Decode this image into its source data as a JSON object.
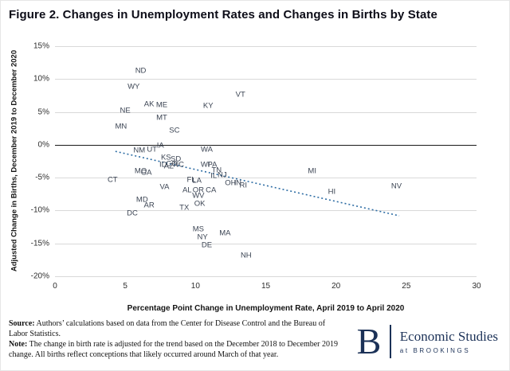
{
  "title": "Figure 2. Changes in Unemployment Rates and Changes in Births by State",
  "chart_data": {
    "type": "scatter",
    "marker": "state-abbreviation-text",
    "title": "Figure 2. Changes in Unemployment Rates and Changes in Births by State",
    "xlabel": "Percentage Point Change in Unemployment Rate, April 2019 to April 2020",
    "ylabel": "Adjusted Change in Births, December 2019 to December 2020",
    "xlim": [
      0,
      30
    ],
    "ylim": [
      -20,
      15
    ],
    "xticks": [
      0,
      5,
      10,
      15,
      20,
      25,
      30
    ],
    "yticks": [
      15,
      10,
      5,
      0,
      -5,
      -10,
      -15,
      -20
    ],
    "grid": "horizontal",
    "zero_line": true,
    "legend": "none",
    "trendline": {
      "style": "dotted",
      "x1": 4.3,
      "y1": -1.0,
      "x2": 24.5,
      "y2": -10.8
    },
    "colors": {
      "trend": "#2e6da4",
      "state_label": "#3c4554",
      "gridline": "#d9d9d9",
      "zero_line": "#1a1a1a"
    },
    "points": [
      {
        "state": "ND",
        "x": 6.1,
        "y": 11.2
      },
      {
        "state": "WY",
        "x": 5.6,
        "y": 8.8
      },
      {
        "state": "VT",
        "x": 13.2,
        "y": 7.6
      },
      {
        "state": "AK",
        "x": 6.7,
        "y": 6.2
      },
      {
        "state": "ME",
        "x": 7.6,
        "y": 6.0
      },
      {
        "state": "KY",
        "x": 10.9,
        "y": 5.9
      },
      {
        "state": "NE",
        "x": 5.0,
        "y": 5.2
      },
      {
        "state": "MT",
        "x": 7.6,
        "y": 4.1
      },
      {
        "state": "MN",
        "x": 4.7,
        "y": 2.8
      },
      {
        "state": "SC",
        "x": 8.5,
        "y": 2.2
      },
      {
        "state": "IA",
        "x": 7.5,
        "y": -0.1
      },
      {
        "state": "NM",
        "x": 6.0,
        "y": -0.9
      },
      {
        "state": "UT",
        "x": 6.9,
        "y": -0.8
      },
      {
        "state": "WA",
        "x": 10.8,
        "y": -0.8
      },
      {
        "state": "KS",
        "x": 7.9,
        "y": -2.0
      },
      {
        "state": "SD",
        "x": 8.6,
        "y": -2.2
      },
      {
        "state": "ID",
        "x": 7.7,
        "y": -3.0
      },
      {
        "state": "AZ",
        "x": 8.1,
        "y": -3.3
      },
      {
        "state": "CO",
        "x": 8.3,
        "y": -2.9
      },
      {
        "state": "NC",
        "x": 8.8,
        "y": -3.1
      },
      {
        "state": "WI",
        "x": 10.7,
        "y": -3.0
      },
      {
        "state": "PA",
        "x": 11.2,
        "y": -3.1
      },
      {
        "state": "TN",
        "x": 11.5,
        "y": -3.9
      },
      {
        "state": "MO",
        "x": 6.1,
        "y": -4.0
      },
      {
        "state": "GA",
        "x": 6.5,
        "y": -4.2
      },
      {
        "state": "MI",
        "x": 18.3,
        "y": -4.0
      },
      {
        "state": "IL",
        "x": 11.3,
        "y": -4.7
      },
      {
        "state": "NJ",
        "x": 11.9,
        "y": -4.6
      },
      {
        "state": "CT",
        "x": 4.1,
        "y": -5.3
      },
      {
        "state": "OH",
        "x": 12.5,
        "y": -5.8
      },
      {
        "state": "IN",
        "x": 13.0,
        "y": -5.8
      },
      {
        "state": "RI",
        "x": 13.4,
        "y": -6.2
      },
      {
        "state": "VA",
        "x": 7.8,
        "y": -6.4
      },
      {
        "state": "FL",
        "x": 9.7,
        "y": -5.4
      },
      {
        "state": "LA",
        "x": 10.1,
        "y": -5.5
      },
      {
        "state": "AL",
        "x": 9.4,
        "y": -6.9
      },
      {
        "state": "OR",
        "x": 10.2,
        "y": -6.9
      },
      {
        "state": "CA",
        "x": 11.1,
        "y": -6.9
      },
      {
        "state": "WV",
        "x": 10.2,
        "y": -7.8
      },
      {
        "state": "MD",
        "x": 6.2,
        "y": -8.4
      },
      {
        "state": "AR",
        "x": 6.7,
        "y": -9.2
      },
      {
        "state": "OK",
        "x": 10.3,
        "y": -9.0
      },
      {
        "state": "TX",
        "x": 9.2,
        "y": -9.6
      },
      {
        "state": "DC",
        "x": 5.5,
        "y": -10.4
      },
      {
        "state": "MS",
        "x": 10.2,
        "y": -12.9
      },
      {
        "state": "NY",
        "x": 10.5,
        "y": -14.1
      },
      {
        "state": "MA",
        "x": 12.1,
        "y": -13.5
      },
      {
        "state": "DE",
        "x": 10.8,
        "y": -15.3
      },
      {
        "state": "NH",
        "x": 13.6,
        "y": -16.9
      },
      {
        "state": "NV",
        "x": 24.3,
        "y": -6.3
      },
      {
        "state": "HI",
        "x": 19.7,
        "y": -7.2
      }
    ]
  },
  "footer": {
    "source_label": "Source:",
    "source_text": " Authors’ calculations based on data from the Center for Disease Control and the Bureau of Labor Statistics.",
    "note_label": "Note:",
    "note_text": " The change in birth rate is adjusted for the trend based on the December 2018 to December 2019 change. All births reflect conceptions that likely occurred around March of that year."
  },
  "logo": {
    "letter": "B",
    "org": "Economic Studies",
    "sub": "at BROOKINGS",
    "color": "#1b3157"
  }
}
